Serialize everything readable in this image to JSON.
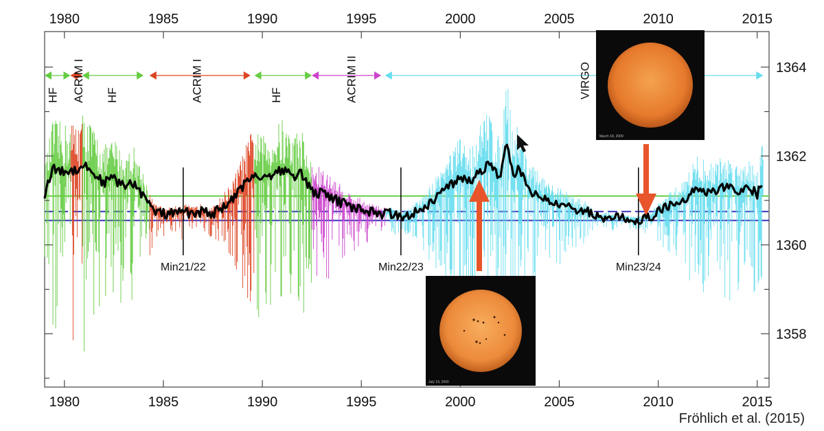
{
  "chart_data": {
    "type": "line",
    "xlim": [
      1979,
      2015.6
    ],
    "ylim": [
      1356.8,
      1364.8
    ],
    "x_ticks": [
      1980,
      1985,
      1990,
      1995,
      2000,
      2005,
      2010,
      2015
    ],
    "y_ticks": [
      1358,
      1360,
      1362,
      1364
    ],
    "grid": false,
    "colors": {
      "HF": "#66cc44",
      "ACRIM I": "#dd4422",
      "ACRIM II": "#cc44cc",
      "VIRGO": "#66ddee",
      "composite": "#000000",
      "solid_blue": "#3333bb",
      "dashed_blue": "#3333bb",
      "green_line": "#66cc44",
      "arrow": "#e8552a"
    },
    "reference_lines": [
      {
        "y": 1361.1,
        "color": "#66cc44",
        "style": "solid"
      },
      {
        "y": 1360.75,
        "color": "#3333bb",
        "style": "dashed"
      },
      {
        "y": 1360.55,
        "color": "#3333bb",
        "style": "solid"
      }
    ],
    "instrument_periods": [
      {
        "label": "HF",
        "start": 1979.0,
        "end": 1980.3,
        "color": "#66cc44",
        "label_x": 1979.6
      },
      {
        "label": "ACRIM I",
        "start": 1980.3,
        "end": 1980.9,
        "color": "#dd4422",
        "label_x": 1980.9
      },
      {
        "label": "HF",
        "start": 1980.9,
        "end": 1984.0,
        "color": "#66cc44",
        "label_x": 1982.6
      },
      {
        "label": "ACRIM I",
        "start": 1984.3,
        "end": 1989.4,
        "color": "#dd4422",
        "label_x": 1986.9
      },
      {
        "label": "HF",
        "start": 1989.6,
        "end": 1992.5,
        "color": "#66cc44",
        "label_x": 1990.9
      },
      {
        "label": "ACRIM II",
        "start": 1992.5,
        "end": 1996.0,
        "color": "#cc44cc",
        "label_x": 1994.7
      },
      {
        "label": "VIRGO",
        "start": 1996.2,
        "end": 2015.3,
        "color": "#66ddee",
        "label_x": 2006.5
      }
    ],
    "series": [
      {
        "name": "composite",
        "x": [
          1979.0,
          1979.4,
          1980.0,
          1980.6,
          1981.0,
          1981.5,
          1982.0,
          1982.5,
          1983.0,
          1983.5,
          1984.0,
          1984.5,
          1985.0,
          1985.5,
          1986.0,
          1986.5,
          1987.0,
          1987.5,
          1988.0,
          1988.5,
          1989.0,
          1989.5,
          1990.0,
          1990.5,
          1991.0,
          1991.5,
          1992.0,
          1992.5,
          1993.0,
          1993.5,
          1994.0,
          1994.5,
          1995.0,
          1995.5,
          1996.0,
          1996.5,
          1997.0,
          1997.5,
          1998.0,
          1998.5,
          1999.0,
          1999.5,
          2000.0,
          2000.5,
          2001.0,
          2001.5,
          2002.0,
          2002.3,
          2002.7,
          2003.0,
          2003.5,
          2004.0,
          2004.5,
          2005.0,
          2005.5,
          2006.0,
          2006.5,
          2007.0,
          2007.5,
          2008.0,
          2008.5,
          2009.0,
          2009.5,
          2010.0,
          2010.5,
          2011.0,
          2011.5,
          2012.0,
          2012.5,
          2013.0,
          2013.5,
          2014.0,
          2014.5,
          2015.0,
          2015.3
        ],
        "y": [
          1361.15,
          1361.7,
          1361.65,
          1361.7,
          1361.8,
          1361.6,
          1361.4,
          1361.5,
          1361.3,
          1361.4,
          1361.1,
          1360.75,
          1360.7,
          1360.7,
          1360.75,
          1360.7,
          1360.75,
          1360.7,
          1360.85,
          1361.0,
          1361.3,
          1361.6,
          1361.5,
          1361.6,
          1361.7,
          1361.55,
          1361.6,
          1361.2,
          1361.15,
          1361.05,
          1360.95,
          1360.85,
          1360.8,
          1360.75,
          1360.7,
          1360.7,
          1360.65,
          1360.7,
          1360.8,
          1360.95,
          1361.15,
          1361.35,
          1361.5,
          1361.4,
          1361.65,
          1361.85,
          1361.45,
          1362.25,
          1361.6,
          1361.7,
          1361.2,
          1361.1,
          1360.95,
          1360.95,
          1360.85,
          1360.8,
          1360.75,
          1360.6,
          1360.65,
          1360.6,
          1360.6,
          1360.55,
          1360.6,
          1360.75,
          1360.85,
          1360.95,
          1361.1,
          1361.3,
          1361.2,
          1361.25,
          1361.3,
          1361.2,
          1361.3,
          1361.15,
          1361.5
        ]
      }
    ],
    "annotations": [
      {
        "text": "Min21/22",
        "x": 1986.0
      },
      {
        "text": "Min22/23",
        "x": 1997.0
      },
      {
        "text": "Min23/24",
        "x": 2009.0
      }
    ]
  },
  "credit": "Fröhlich et al. (2015)",
  "images": {
    "sun_2009_caption": "March 18, 2009",
    "sun_2000_caption": "July 19, 2000"
  }
}
